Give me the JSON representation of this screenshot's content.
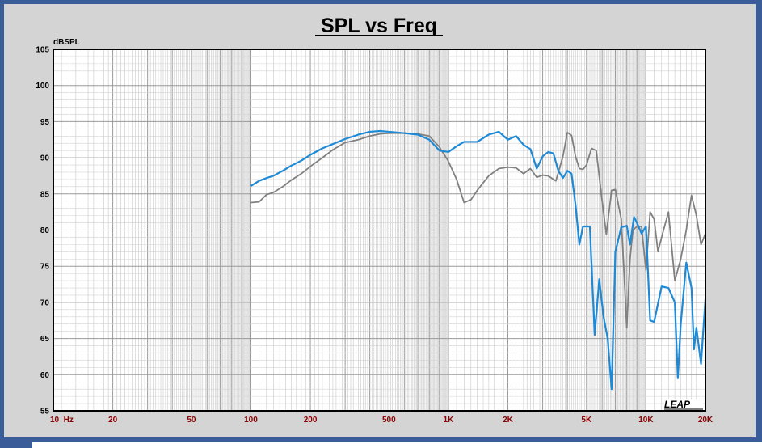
{
  "chart_data": {
    "type": "line",
    "title": "SPL vs Freq",
    "ylabel": "dBSPL",
    "xscale": "log",
    "xlim": [
      10,
      20000
    ],
    "ylim": [
      55,
      105
    ],
    "grid": true,
    "x_ticks": [
      {
        "value": 10,
        "label": "10  Hz"
      },
      {
        "value": 20,
        "label": "20"
      },
      {
        "value": 50,
        "label": "50"
      },
      {
        "value": 100,
        "label": "100"
      },
      {
        "value": 200,
        "label": "200"
      },
      {
        "value": 500,
        "label": "500"
      },
      {
        "value": 1000,
        "label": "1K"
      },
      {
        "value": 2000,
        "label": "2K"
      },
      {
        "value": 5000,
        "label": "5K"
      },
      {
        "value": 10000,
        "label": "10K"
      },
      {
        "value": 20000,
        "label": "20K"
      }
    ],
    "y_ticks": [
      55,
      60,
      65,
      70,
      75,
      80,
      85,
      90,
      95,
      100,
      105
    ],
    "logo_text": "LEAP",
    "series": [
      {
        "color": "#808080",
        "points": [
          [
            100,
            83.8
          ],
          [
            110,
            83.9
          ],
          [
            120,
            84.9
          ],
          [
            130,
            85.2
          ],
          [
            145,
            86.0
          ],
          [
            160,
            86.9
          ],
          [
            180,
            87.8
          ],
          [
            200,
            88.8
          ],
          [
            230,
            90.0
          ],
          [
            260,
            91.1
          ],
          [
            300,
            92.1
          ],
          [
            350,
            92.5
          ],
          [
            400,
            93.0
          ],
          [
            450,
            93.3
          ],
          [
            500,
            93.4
          ],
          [
            600,
            93.4
          ],
          [
            700,
            93.3
          ],
          [
            800,
            93.0
          ],
          [
            900,
            91.5
          ],
          [
            1000,
            89.5
          ],
          [
            1100,
            87.0
          ],
          [
            1200,
            83.8
          ],
          [
            1300,
            84.2
          ],
          [
            1400,
            85.5
          ],
          [
            1600,
            87.5
          ],
          [
            1800,
            88.5
          ],
          [
            2000,
            88.7
          ],
          [
            2200,
            88.6
          ],
          [
            2400,
            87.8
          ],
          [
            2600,
            88.5
          ],
          [
            2800,
            87.3
          ],
          [
            3000,
            87.6
          ],
          [
            3200,
            87.5
          ],
          [
            3500,
            86.8
          ],
          [
            3800,
            90.2
          ],
          [
            4000,
            93.5
          ],
          [
            4200,
            93.1
          ],
          [
            4400,
            90.2
          ],
          [
            4600,
            88.5
          ],
          [
            4800,
            88.4
          ],
          [
            5000,
            89.0
          ],
          [
            5300,
            91.3
          ],
          [
            5600,
            91.0
          ],
          [
            6000,
            84.0
          ],
          [
            6300,
            79.4
          ],
          [
            6700,
            85.5
          ],
          [
            7000,
            85.6
          ],
          [
            7500,
            81.5
          ],
          [
            8000,
            66.5
          ],
          [
            8300,
            76.0
          ],
          [
            8600,
            80.0
          ],
          [
            9000,
            80.5
          ],
          [
            9500,
            80.5
          ],
          [
            10000,
            74.5
          ],
          [
            10500,
            82.5
          ],
          [
            11000,
            81.5
          ],
          [
            11500,
            77.0
          ],
          [
            12000,
            79.0
          ],
          [
            13000,
            82.5
          ],
          [
            14000,
            73.0
          ],
          [
            15000,
            76.0
          ],
          [
            16000,
            80.0
          ],
          [
            17000,
            84.8
          ],
          [
            18000,
            82.0
          ],
          [
            19000,
            78.0
          ],
          [
            20000,
            79.5
          ]
        ]
      },
      {
        "color": "#1e8ad6",
        "points": [
          [
            100,
            86.1
          ],
          [
            110,
            86.8
          ],
          [
            120,
            87.2
          ],
          [
            130,
            87.5
          ],
          [
            145,
            88.2
          ],
          [
            160,
            88.9
          ],
          [
            180,
            89.6
          ],
          [
            200,
            90.4
          ],
          [
            230,
            91.3
          ],
          [
            260,
            91.9
          ],
          [
            300,
            92.6
          ],
          [
            350,
            93.2
          ],
          [
            400,
            93.6
          ],
          [
            450,
            93.7
          ],
          [
            500,
            93.6
          ],
          [
            600,
            93.4
          ],
          [
            700,
            93.2
          ],
          [
            800,
            92.5
          ],
          [
            900,
            91.0
          ],
          [
            1000,
            90.8
          ],
          [
            1100,
            91.6
          ],
          [
            1200,
            92.2
          ],
          [
            1400,
            92.2
          ],
          [
            1600,
            93.2
          ],
          [
            1800,
            93.6
          ],
          [
            2000,
            92.5
          ],
          [
            2200,
            93.0
          ],
          [
            2400,
            91.8
          ],
          [
            2600,
            91.2
          ],
          [
            2800,
            88.5
          ],
          [
            3000,
            90.2
          ],
          [
            3200,
            90.8
          ],
          [
            3400,
            90.6
          ],
          [
            3600,
            88.2
          ],
          [
            3800,
            87.2
          ],
          [
            4000,
            88.2
          ],
          [
            4200,
            87.8
          ],
          [
            4400,
            83.5
          ],
          [
            4600,
            78.0
          ],
          [
            4800,
            80.5
          ],
          [
            5200,
            80.5
          ],
          [
            5500,
            65.5
          ],
          [
            5800,
            73.2
          ],
          [
            6100,
            68.0
          ],
          [
            6400,
            65.0
          ],
          [
            6700,
            58.0
          ],
          [
            7000,
            77.0
          ],
          [
            7500,
            80.4
          ],
          [
            8000,
            80.6
          ],
          [
            8300,
            78.0
          ],
          [
            8700,
            81.8
          ],
          [
            9000,
            81.0
          ],
          [
            9500,
            79.5
          ],
          [
            10000,
            80.5
          ],
          [
            10500,
            67.5
          ],
          [
            11000,
            67.3
          ],
          [
            12000,
            72.2
          ],
          [
            13000,
            72.0
          ],
          [
            14000,
            70.0
          ],
          [
            14500,
            59.5
          ],
          [
            15000,
            67.0
          ],
          [
            16000,
            75.5
          ],
          [
            17000,
            72.0
          ],
          [
            17500,
            63.5
          ],
          [
            18000,
            66.5
          ],
          [
            19000,
            61.5
          ],
          [
            20000,
            70.5
          ]
        ]
      }
    ]
  }
}
